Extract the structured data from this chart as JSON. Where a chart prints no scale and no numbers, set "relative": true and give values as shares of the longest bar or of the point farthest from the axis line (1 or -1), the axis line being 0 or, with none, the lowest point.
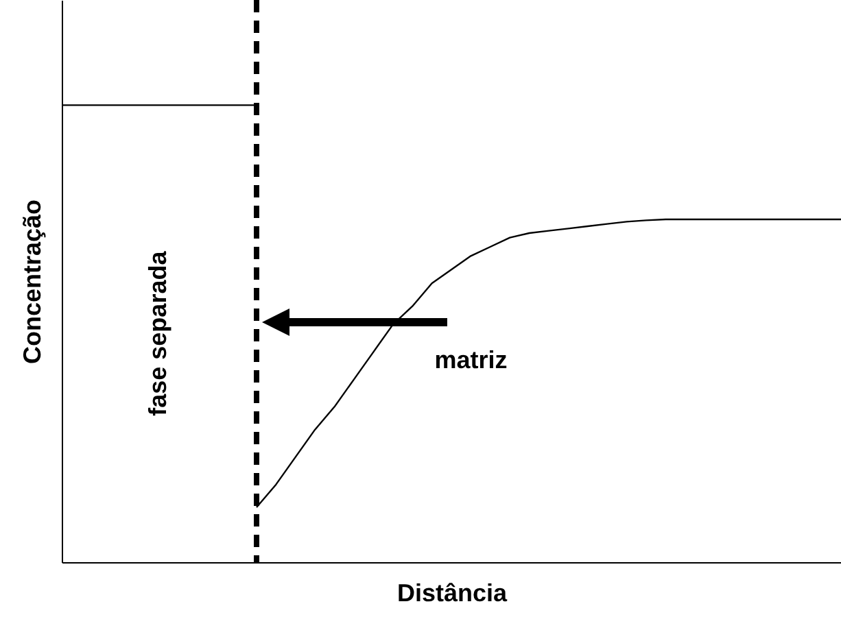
{
  "chart_data": {
    "type": "line",
    "relative": true,
    "xlabel": "Distância",
    "ylabel": "Concentração",
    "categories": [
      null,
      null,
      null,
      null,
      null,
      null,
      null,
      null,
      null,
      null,
      null,
      null,
      null,
      null,
      null,
      null,
      null,
      null,
      null,
      null,
      null,
      null,
      null,
      null,
      null,
      null,
      null,
      null,
      null,
      null,
      null,
      null,
      null,
      null,
      null,
      null,
      null,
      null,
      null,
      null,
      null
    ],
    "series": [
      {
        "color": "#000000",
        "values": [
          1,
          1,
          1,
          1,
          1,
          1,
          1,
          1,
          1,
          1,
          1,
          null,
          null,
          null,
          null,
          null,
          null,
          null,
          null,
          null,
          null,
          null,
          null,
          null,
          null,
          null,
          null,
          null,
          null,
          null,
          null,
          null,
          null,
          null,
          null,
          null,
          null,
          null,
          null,
          null,
          null
        ]
      },
      {
        "color": "#000000",
        "values": [
          null,
          null,
          null,
          null,
          null,
          null,
          null,
          null,
          null,
          null,
          0.12,
          0.17,
          0.23,
          0.29,
          0.34,
          0.4,
          0.46,
          0.52,
          0.56,
          0.61,
          0.64,
          0.67,
          0.69,
          0.71,
          0.72,
          0.725,
          0.73,
          0.735,
          0.74,
          0.745,
          0.748,
          0.75,
          0.75,
          0.75,
          0.75,
          0.75,
          0.75,
          0.75,
          0.75,
          0.75,
          0.75
        ]
      }
    ],
    "annotations": [
      "fase separada",
      "matriz"
    ],
    "grid": false,
    "tick_labels": false,
    "marker": "none",
    "line_style": "solid"
  }
}
